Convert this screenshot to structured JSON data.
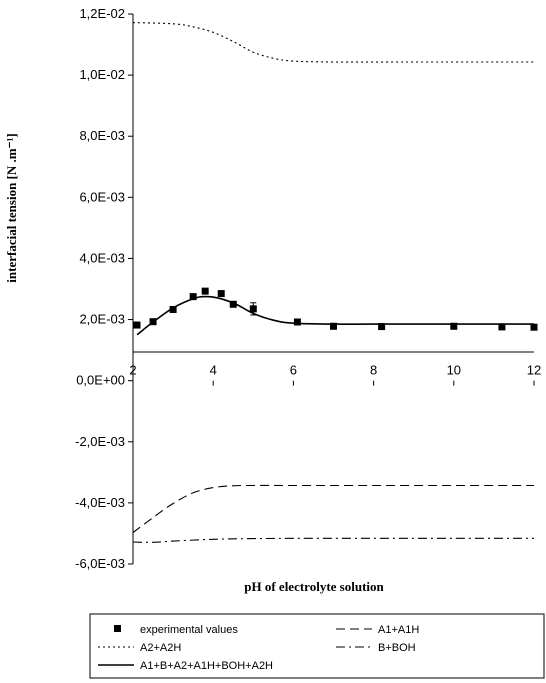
{
  "chart_data": {
    "type": "line",
    "title": "",
    "xlabel": "pH of electrolyte solution",
    "ylabel": "interfacial tension [N .m⁻¹]",
    "xlim": [
      2,
      12
    ],
    "ylim": [
      -0.006,
      0.012
    ],
    "x_ticks": [
      2,
      4,
      6,
      8,
      10,
      12
    ],
    "x_tick_labels": [
      "2",
      "4",
      "6",
      "8",
      "10",
      "12"
    ],
    "y_ticks": [
      0.012,
      0.01,
      0.008,
      0.006,
      0.004,
      0.002,
      0.0,
      -0.002,
      -0.004,
      -0.006
    ],
    "y_tick_labels": [
      "1,2E-02",
      "1,0E-02",
      "8,0E-03",
      "6,0E-03",
      "4,0E-03",
      "2,0E-03",
      "0,0E+00",
      "-2,0E-03",
      "-4,0E-03",
      "-6,0E-03"
    ],
    "grid": false,
    "legend_position": "bottom",
    "series": [
      {
        "name": "experimental values",
        "kind": "markers",
        "marker": "square",
        "color": "#000000",
        "points": [
          [
            2.1,
            0.00182
          ],
          [
            2.5,
            0.00193
          ],
          [
            3.0,
            0.00233
          ],
          [
            3.5,
            0.00275
          ],
          [
            3.8,
            0.00293
          ],
          [
            4.2,
            0.00285
          ],
          [
            4.5,
            0.0025
          ],
          [
            5.0,
            0.00235
          ],
          [
            6.1,
            0.00192
          ],
          [
            7.0,
            0.00178
          ],
          [
            8.2,
            0.00177
          ],
          [
            10.0,
            0.00178
          ],
          [
            11.2,
            0.00176
          ],
          [
            12.0,
            0.00175
          ]
        ],
        "error_bars": [
          [
            5.0,
            0.00215,
            0.00255
          ]
        ]
      },
      {
        "name": "A1+A1H",
        "kind": "line",
        "dash": "dashed",
        "color": "#000000",
        "points": [
          [
            2.0,
            -0.00497
          ],
          [
            2.5,
            -0.00448
          ],
          [
            3.0,
            -0.00402
          ],
          [
            3.5,
            -0.00367
          ],
          [
            4.0,
            -0.0035
          ],
          [
            4.5,
            -0.00344
          ],
          [
            5.0,
            -0.00343
          ],
          [
            6.0,
            -0.00343
          ],
          [
            8.0,
            -0.00343
          ],
          [
            10.0,
            -0.00343
          ],
          [
            12.0,
            -0.00343
          ]
        ]
      },
      {
        "name": "A2+A2H",
        "kind": "line",
        "dash": "dotted",
        "color": "#000000",
        "points": [
          [
            2.0,
            0.01172
          ],
          [
            3.0,
            0.01168
          ],
          [
            3.5,
            0.01158
          ],
          [
            4.0,
            0.0114
          ],
          [
            4.5,
            0.0111
          ],
          [
            5.0,
            0.01075
          ],
          [
            5.5,
            0.01055
          ],
          [
            6.0,
            0.01046
          ],
          [
            7.0,
            0.01043
          ],
          [
            9.0,
            0.01043
          ],
          [
            12.0,
            0.01043
          ]
        ]
      },
      {
        "name": "B+BOH",
        "kind": "line",
        "dash": "dash-dot",
        "color": "#000000",
        "points": [
          [
            2.0,
            -0.00528
          ],
          [
            2.5,
            -0.00529
          ],
          [
            3.0,
            -0.00525
          ],
          [
            4.0,
            -0.00519
          ],
          [
            5.0,
            -0.00517
          ],
          [
            6.0,
            -0.00516
          ],
          [
            8.0,
            -0.00516
          ],
          [
            10.0,
            -0.00516
          ],
          [
            12.0,
            -0.00516
          ]
        ]
      },
      {
        "name": "A1+B+A2+A1H+BOH+A2H",
        "kind": "line",
        "dash": "solid",
        "color": "#000000",
        "points": [
          [
            2.1,
            0.0015
          ],
          [
            2.5,
            0.00192
          ],
          [
            3.0,
            0.00238
          ],
          [
            3.5,
            0.00268
          ],
          [
            3.8,
            0.00275
          ],
          [
            4.2,
            0.00268
          ],
          [
            4.6,
            0.00248
          ],
          [
            5.0,
            0.0022
          ],
          [
            5.5,
            0.00198
          ],
          [
            6.0,
            0.00188
          ],
          [
            7.0,
            0.00185
          ],
          [
            8.0,
            0.00185
          ],
          [
            10.0,
            0.00185
          ],
          [
            12.0,
            0.00185
          ]
        ]
      }
    ]
  }
}
